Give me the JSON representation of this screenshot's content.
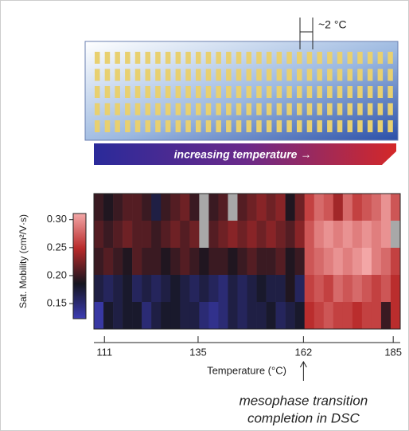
{
  "chart_data": {
    "type": "heatmap",
    "annotation_gap": "~2 °C",
    "gradient_label": "increasing temperature →",
    "ylabel": "Sat. Mobility (cm²/V·s)",
    "xlabel": "Temperature (°C)",
    "note_lines": [
      "mesophase transition",
      "completion in DSC"
    ],
    "note_x": 162,
    "xlim": [
      108.3,
      186.8
    ],
    "xticks": [
      111,
      135,
      162,
      185
    ],
    "clim": [
      0.123,
      0.311
    ],
    "yticks": [
      0.15,
      {
        "value": 0.2,
        "label": "0.20"
      },
      0.25,
      {
        "value": 0.3,
        "label": "0.30"
      }
    ],
    "colormap": [
      "#3c3cb4",
      "#15151f",
      "#b82a2a",
      "#f4a8a8"
    ],
    "missing_color": "#a8a8a8",
    "z": [
      [
        0.2,
        0.19,
        0.2,
        0.21,
        0.21,
        0.2,
        0.17,
        0.2,
        0.21,
        0.22,
        0.2,
        null,
        0.2,
        0.21,
        null,
        0.21,
        0.22,
        0.23,
        0.22,
        0.23,
        0.19,
        0.22,
        0.26,
        0.28,
        0.27,
        0.24,
        0.28,
        0.26,
        0.27,
        0.28,
        0.3,
        0.27
      ],
      [
        0.21,
        0.2,
        0.21,
        0.22,
        0.21,
        0.21,
        0.2,
        0.21,
        0.22,
        0.21,
        0.22,
        null,
        0.21,
        0.22,
        0.23,
        0.22,
        0.23,
        0.22,
        0.23,
        0.22,
        0.21,
        0.23,
        0.27,
        0.29,
        0.3,
        0.29,
        0.3,
        0.29,
        0.3,
        0.29,
        0.3,
        null
      ],
      [
        0.2,
        0.21,
        0.2,
        0.19,
        0.21,
        0.2,
        0.2,
        0.19,
        0.2,
        0.21,
        0.2,
        0.19,
        0.2,
        0.2,
        0.19,
        0.2,
        0.21,
        0.2,
        0.2,
        0.21,
        0.19,
        0.2,
        0.27,
        0.28,
        0.29,
        0.3,
        0.29,
        0.3,
        0.31,
        0.29,
        0.28,
        0.26
      ],
      [
        0.17,
        0.16,
        0.17,
        0.18,
        0.16,
        0.17,
        0.16,
        0.17,
        0.18,
        0.17,
        0.16,
        0.17,
        0.16,
        0.15,
        0.17,
        0.16,
        0.17,
        0.18,
        0.17,
        0.17,
        0.19,
        0.16,
        0.26,
        0.27,
        0.26,
        0.28,
        0.27,
        0.28,
        0.27,
        0.26,
        0.27,
        0.25
      ],
      [
        0.13,
        0.18,
        0.17,
        0.18,
        0.18,
        0.15,
        0.17,
        0.18,
        0.18,
        0.17,
        0.17,
        0.15,
        0.14,
        0.15,
        0.17,
        0.16,
        0.17,
        0.17,
        0.18,
        0.16,
        0.17,
        0.18,
        0.25,
        0.26,
        0.27,
        0.26,
        0.26,
        0.25,
        0.26,
        0.26,
        0.2,
        0.25
      ]
    ]
  }
}
